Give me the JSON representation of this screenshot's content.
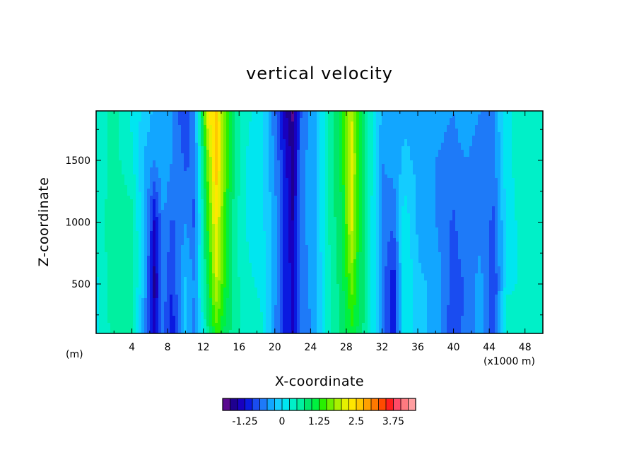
{
  "chart_data": {
    "type": "heatmap",
    "title": "vertical velocity",
    "xlabel": "X-coordinate",
    "ylabel": "Z-coordinate",
    "x_unit_label": "(m)",
    "x_scale_label": "(x1000 m)",
    "xlim": [
      0,
      50000
    ],
    "ylim": [
      100,
      1900
    ],
    "x_ticks": [
      4,
      8,
      12,
      16,
      20,
      24,
      28,
      32,
      36,
      40,
      44,
      48
    ],
    "y_ticks": [
      500,
      1000,
      1500
    ],
    "x_tick_labels": [
      "4",
      "8",
      "12",
      "16",
      "20",
      "24",
      "28",
      "32",
      "36",
      "40",
      "44",
      "48"
    ],
    "y_tick_labels": [
      "500",
      "1000",
      "1500"
    ],
    "grid": false,
    "colorbar": {
      "min": -2.0,
      "max": 4.25,
      "step": 0.25,
      "tick_values": [
        -1.25,
        0,
        1.25,
        2.5,
        3.75
      ],
      "tick_labels": [
        "-1.25",
        "0",
        "1.25",
        "2.5",
        "3.75"
      ],
      "colors": [
        "#5a0a8f",
        "#1e0090",
        "#1800c0",
        "#0a1ae0",
        "#1a4cf0",
        "#1e7af8",
        "#12a6ff",
        "#14ccff",
        "#00e6f0",
        "#00f0c8",
        "#00f0a0",
        "#00e66a",
        "#00f040",
        "#28f000",
        "#6ef000",
        "#aaf000",
        "#e6f000",
        "#ffe600",
        "#ffc800",
        "#ffa000",
        "#ff7800",
        "#ff4a00",
        "#ff1e1e",
        "#ff4a68",
        "#ff7a80",
        "#ff9ea0"
      ]
    },
    "x_km": [
      0,
      2,
      4,
      5.5,
      6.5,
      7.5,
      8.5,
      10,
      11,
      12.5,
      13.4,
      14.5,
      15.5,
      17,
      18.5,
      20,
      21,
      22,
      23,
      24.5,
      26,
      27.5,
      28.6,
      29.5,
      30.5,
      32,
      33.3,
      34.5,
      36,
      38,
      40,
      41.5,
      43,
      44.5,
      46,
      48,
      50
    ],
    "z_levels": [
      100,
      500,
      1000,
      1500,
      1900
    ],
    "w": [
      [
        0.2,
        0.6,
        0.5,
        -0.6,
        -1.3,
        -0.7,
        -1.2,
        -0.2,
        -0.6,
        0.7,
        1.4,
        0.9,
        0.6,
        0.4,
        0.3,
        -0.5,
        -1.1,
        -1.3,
        -0.7,
        -0.4,
        0.4,
        0.8,
        1.2,
        0.9,
        0.5,
        -0.6,
        -1.1,
        0.3,
        -0.2,
        -0.3,
        -1.0,
        -0.6,
        -0.4,
        -0.9,
        0.4,
        0.3,
        0.5
      ],
      [
        0.2,
        0.7,
        0.7,
        -0.4,
        -1.6,
        -0.6,
        -1.0,
        -0.2,
        -0.5,
        1.0,
        2.0,
        1.2,
        0.6,
        0.3,
        0.2,
        -0.4,
        -1.0,
        -1.3,
        -0.6,
        -0.4,
        0.4,
        0.9,
        1.6,
        1.0,
        0.5,
        -0.6,
        -1.2,
        0.3,
        -0.2,
        -0.3,
        -0.9,
        -0.7,
        -0.4,
        -1.0,
        0.2,
        0.3,
        0.5
      ],
      [
        0.3,
        0.7,
        0.6,
        -0.3,
        -1.3,
        -0.5,
        -0.8,
        -0.5,
        -0.8,
        1.3,
        2.3,
        1.3,
        0.6,
        0.2,
        0.1,
        -0.4,
        -1.0,
        -1.5,
        -0.6,
        -0.3,
        0.5,
        1.0,
        2.1,
        1.1,
        0.5,
        -0.6,
        -0.7,
        0.2,
        -0.3,
        -0.5,
        -0.8,
        -0.5,
        -0.6,
        -0.8,
        0.1,
        0.4,
        0.5
      ],
      [
        0.3,
        0.6,
        0.3,
        -0.3,
        -0.5,
        -0.3,
        -0.5,
        -0.8,
        -0.7,
        1.6,
        2.7,
        1.5,
        0.7,
        0.2,
        0.1,
        -0.5,
        -1.1,
        -1.6,
        -0.6,
        -0.3,
        0.5,
        1.1,
        2.2,
        1.1,
        0.5,
        -0.5,
        -0.4,
        -0.2,
        -0.3,
        -0.5,
        -0.6,
        -0.5,
        -0.7,
        -0.6,
        0.2,
        0.4,
        0.5
      ],
      [
        0.3,
        0.6,
        0.2,
        -0.1,
        -0.3,
        -0.3,
        -0.5,
        -1.0,
        -0.5,
        2.2,
        2.6,
        1.5,
        0.7,
        0.3,
        0.1,
        -0.7,
        -1.4,
        -1.8,
        -0.7,
        -0.3,
        0.5,
        1.2,
        2.0,
        1.1,
        0.5,
        -0.3,
        -0.3,
        -0.3,
        -0.3,
        -0.4,
        -0.5,
        -0.3,
        -0.5,
        -0.5,
        0.2,
        0.4,
        0.5
      ]
    ]
  }
}
